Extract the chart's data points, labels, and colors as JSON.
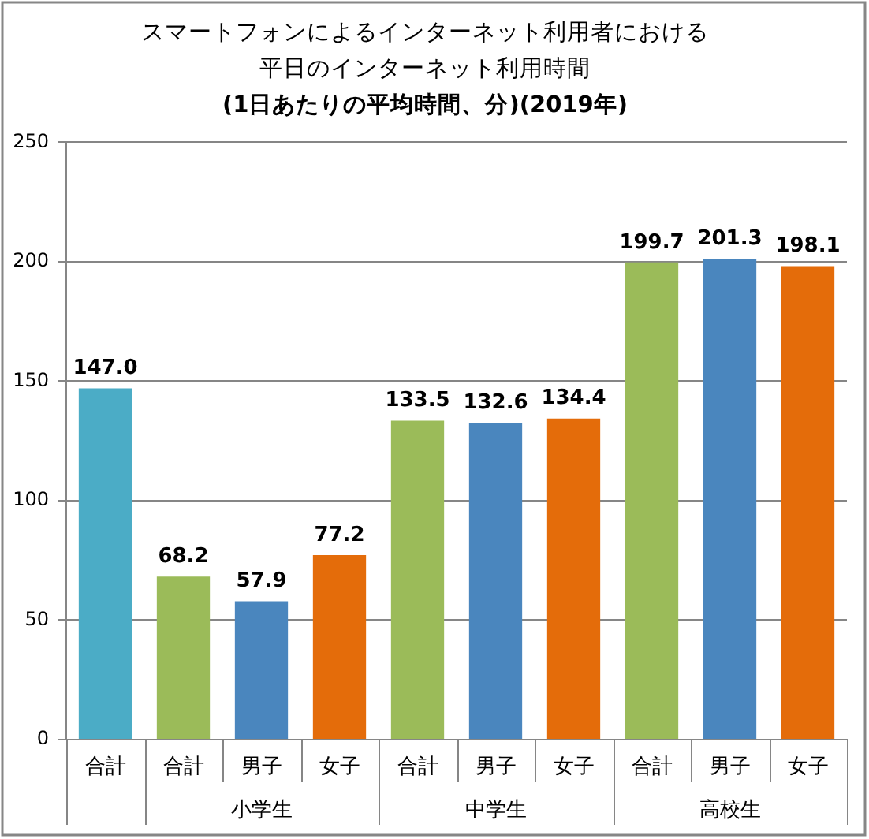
{
  "chart_data": {
    "type": "bar",
    "title": "スマートフォンによるインターネット利用者における平日のインターネット利用時間",
    "subtitle": "(1日あたりの平均時間、分)(2019年)",
    "categories": [
      "合計",
      "合計",
      "男子",
      "女子",
      "合計",
      "男子",
      "女子",
      "合計",
      "男子",
      "女子"
    ],
    "values": [
      147.0,
      68.2,
      57.9,
      77.2,
      133.5,
      132.6,
      134.4,
      199.7,
      201.3,
      198.1
    ],
    "colors": [
      "#4bacc6",
      "#9bbb59",
      "#4a86be",
      "#e46c0a",
      "#9bbb59",
      "#4a86be",
      "#e46c0a",
      "#9bbb59",
      "#4a86be",
      "#e46c0a"
    ],
    "value_labels": [
      "147.0",
      "68.2",
      "57.9",
      "77.2",
      "133.5",
      "132.6",
      "134.4",
      "199.7",
      "201.3",
      "198.1"
    ],
    "annotations": [
      "小学生",
      "中学生",
      "高校生"
    ],
    "ylim": [
      0,
      250
    ],
    "yticks": [
      0,
      50,
      100,
      150,
      200,
      250
    ],
    "grid": "y",
    "legend": false
  }
}
